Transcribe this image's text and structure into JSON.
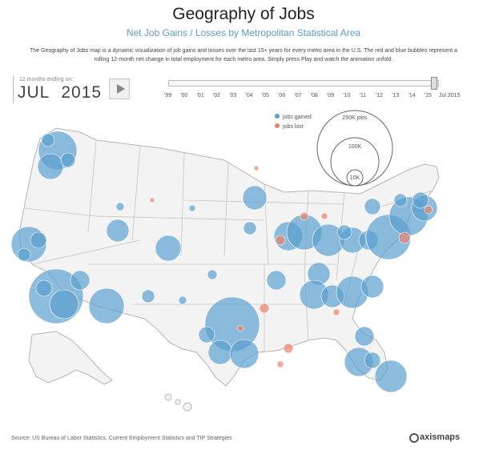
{
  "header": {
    "title": "Geography of Jobs",
    "subtitle": "Net Job Gains / Losses by Metropolitan Statistical Area",
    "description": "The Geography of Jobs map is a dynamic visualization of job gains and losses over the last 15+ years for every metro area in the U.S. The red and blue bubbles represent a rolling 12-month net change in total employment for each metro area. Simply press Play and watch the animation unfold."
  },
  "controls": {
    "date_caption": "12 months ending on:",
    "month": "JUL",
    "year": "2015",
    "timeline_ticks": [
      "'99",
      "'00",
      "'01",
      "'02",
      "'03",
      "'04",
      "'05",
      "'06",
      "'07",
      "'08",
      "'09",
      "'10",
      "'11",
      "'12",
      "'13",
      "'14",
      "'15"
    ],
    "timeline_end": "Jul 2015"
  },
  "legend": {
    "gained_label": "jobs gained",
    "lost_label": "jobs lost",
    "size_labels": [
      "250K jobs",
      "100K",
      "10K"
    ]
  },
  "colors": {
    "gain": "#5b9fd0",
    "loss": "#e8836a",
    "land": "#f3f3f3",
    "border": "#b5b5b5"
  },
  "footer": {
    "source": "Source: US Bureau of Labor Statistics, Current Employment Statistics and TIP Strategies",
    "brand": "axismaps"
  }
}
